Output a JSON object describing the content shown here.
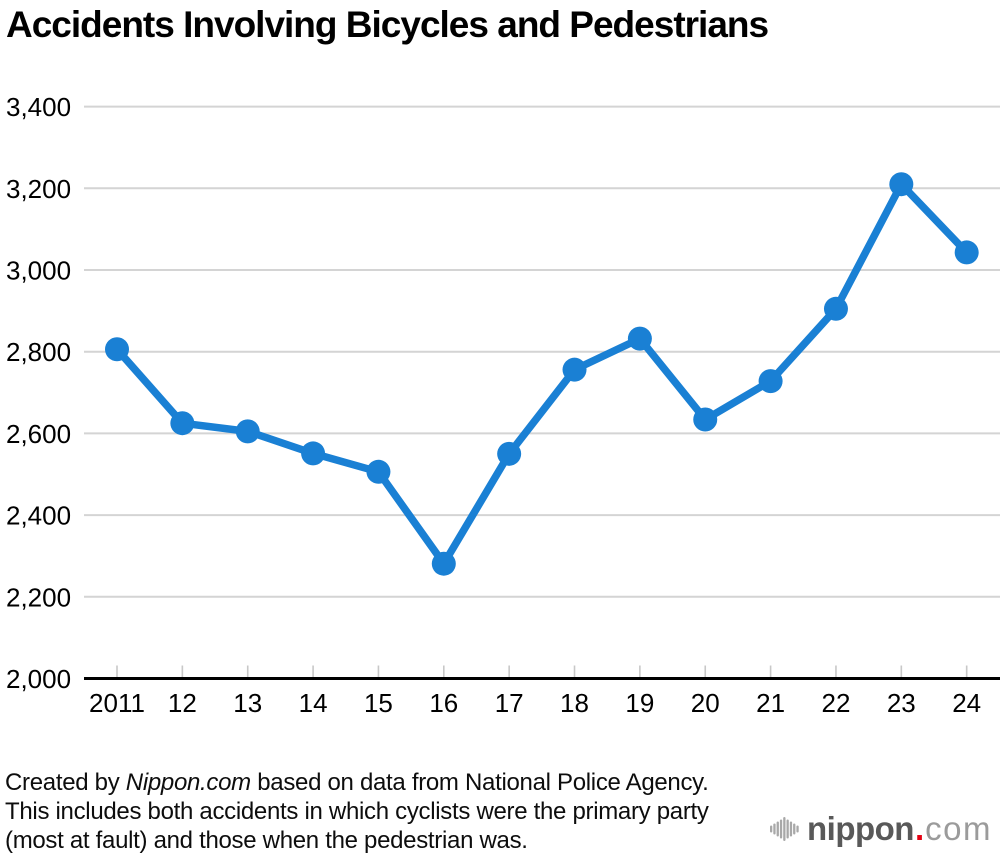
{
  "title": "Accidents Involving Bicycles and Pedestrians",
  "chart_data": {
    "type": "line",
    "title": "Accidents Involving Bicycles and Pedestrians",
    "xlabel": "",
    "ylabel": "",
    "categories": [
      "2011",
      "12",
      "13",
      "14",
      "15",
      "16",
      "17",
      "18",
      "19",
      "20",
      "21",
      "22",
      "23",
      "24"
    ],
    "series": [
      {
        "name": "Accidents involving bicycles and pedestrians",
        "values": [
          2806,
          2625,
          2605,
          2551,
          2506,
          2281,
          2550,
          2756,
          2832,
          2634,
          2728,
          2905,
          3210,
          3043
        ]
      }
    ],
    "ylim": [
      2000,
      3400
    ],
    "yticks": [
      {
        "v": 3400,
        "label": "3,400"
      },
      {
        "v": 3200,
        "label": "3,200"
      },
      {
        "v": 3000,
        "label": "3,000"
      },
      {
        "v": 2800,
        "label": "2,800"
      },
      {
        "v": 2600,
        "label": "2,600"
      },
      {
        "v": 2400,
        "label": "2,400"
      },
      {
        "v": 2200,
        "label": "2,200"
      },
      {
        "v": 2000,
        "label": "2,000"
      }
    ],
    "grid": "horizontal",
    "legend": "none",
    "marker": "circle",
    "colors": {
      "line": "#1a80d4",
      "grid": "#d4d4d4",
      "tick": "#c8c8c8",
      "axis": "#000000",
      "label_text": "#000000"
    }
  },
  "footer": {
    "line1_prefix": "Created by ",
    "line1_italic": "Nippon.com",
    "line1_suffix": " based on data from National Police Agency.",
    "line2": "This includes both accidents in which cyclists were the primary party",
    "line3": "(most at fault) and those when the pedestrian was."
  },
  "logo": {
    "brand": "nippon",
    "dot": ".",
    "tld": "com",
    "icon": "soundwave-bars-icon",
    "colors": {
      "brand": "#595959",
      "dot": "#e60012",
      "tld": "#9b9b9b",
      "icon_bars": "#a8a8a8"
    }
  }
}
